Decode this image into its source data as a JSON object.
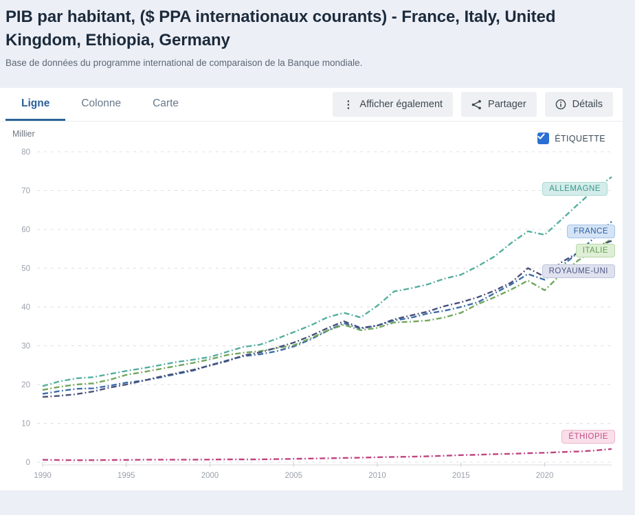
{
  "page": {
    "title": "PIB par habitant, ($ PPA internationaux courants) - France, Italy, United Kingdom, Ethiopia, Germany",
    "subtitle": "Base de données du programme international de comparaison de la Banque mondiale."
  },
  "tabs": [
    {
      "label": "Ligne",
      "active": true
    },
    {
      "label": "Colonne",
      "active": false
    },
    {
      "label": "Carte",
      "active": false
    }
  ],
  "toolbar": {
    "also_show_label": "Afficher également",
    "share_label": "Partager",
    "details_label": "Détails"
  },
  "legend": {
    "label": "ÉTIQUETTE",
    "checked": true,
    "checkbox_color": "#2b6fd4"
  },
  "chart_data": {
    "type": "line",
    "unit_label": "Millier",
    "x_label": "",
    "y_label": "Millier",
    "ylim": [
      0,
      80
    ],
    "y_ticks": [
      0,
      10,
      20,
      30,
      40,
      50,
      60,
      70,
      80
    ],
    "x_ticks": [
      1990,
      1995,
      2000,
      2005,
      2010,
      2015,
      2020
    ],
    "x": [
      1990,
      1991,
      1992,
      1993,
      1994,
      1995,
      1996,
      1997,
      1998,
      1999,
      2000,
      2001,
      2002,
      2003,
      2004,
      2005,
      2006,
      2007,
      2008,
      2009,
      2010,
      2011,
      2012,
      2013,
      2014,
      2015,
      2016,
      2017,
      2018,
      2019,
      2020,
      2021,
      2022,
      2023,
      2024
    ],
    "grid": "dashed-horizontal",
    "line_style": "dash-dot",
    "series": [
      {
        "name": "Allemagne",
        "label": "ALLEMAGNE",
        "color": "#53ae9f",
        "label_bg": "#d4ecea",
        "label_border": "#a9dad4",
        "label_text_color": "#36998c",
        "label_y_value": 70.3,
        "values": [
          19.6,
          20.8,
          21.6,
          21.9,
          22.7,
          23.5,
          24.2,
          25.0,
          25.8,
          26.4,
          27.1,
          28.4,
          29.7,
          30.3,
          31.8,
          33.5,
          35.2,
          37.3,
          38.5,
          37.3,
          40.3,
          44.0,
          44.8,
          45.8,
          47.3,
          48.3,
          50.5,
          53.0,
          56.5,
          59.5,
          58.6,
          62.5,
          66.5,
          70.3,
          73.5
        ]
      },
      {
        "name": "France",
        "label": "FRANCE",
        "color": "#3c6ca8",
        "label_bg": "#d4e3f5",
        "label_border": "#a3c4ea",
        "label_text_color": "#2c60a0",
        "label_y_value": 59.3,
        "values": [
          17.6,
          18.3,
          18.9,
          19.0,
          19.7,
          20.5,
          21.0,
          21.8,
          22.7,
          23.6,
          25.0,
          26.2,
          27.3,
          27.8,
          28.6,
          29.8,
          31.6,
          33.8,
          35.8,
          34.4,
          35.2,
          36.5,
          37.2,
          38.3,
          39.0,
          40.0,
          41.2,
          43.5,
          45.8,
          48.5,
          47.0,
          50.5,
          54.0,
          58.0,
          62.0
        ]
      },
      {
        "name": "Italie",
        "label": "ITALIE",
        "color": "#71a65c",
        "label_bg": "#dfeed6",
        "label_border": "#b9daa6",
        "label_text_color": "#619f4e",
        "label_y_value": 54.3,
        "values": [
          18.6,
          19.4,
          20.0,
          20.3,
          21.2,
          22.5,
          23.2,
          24.0,
          24.8,
          25.6,
          26.5,
          27.6,
          28.2,
          28.6,
          29.4,
          30.1,
          31.9,
          33.9,
          35.4,
          34.0,
          34.6,
          36.0,
          36.2,
          36.5,
          37.3,
          38.5,
          40.7,
          42.5,
          44.5,
          46.8,
          44.3,
          48.5,
          52.0,
          54.8,
          57.5
        ]
      },
      {
        "name": "Royaume-Uni",
        "label": "ROYAUME-UNI",
        "color": "#485079",
        "label_bg": "#dfe2ee",
        "label_border": "#bcc3db",
        "label_text_color": "#4c5584",
        "label_y_value": 49.0,
        "values": [
          16.8,
          17.1,
          17.5,
          18.2,
          19.2,
          20.0,
          21.0,
          22.0,
          22.9,
          23.8,
          24.9,
          26.0,
          27.5,
          28.3,
          29.5,
          30.8,
          32.5,
          34.5,
          36.3,
          34.6,
          35.2,
          36.8,
          37.8,
          38.8,
          40.2,
          41.2,
          42.5,
          44.2,
          46.3,
          50.0,
          47.8,
          51.5,
          54.0,
          55.5,
          57.0
        ]
      },
      {
        "name": "Éthiopie",
        "label": "ÉTHIOPIE",
        "color": "#c04380",
        "label_bg": "#f9dfe9",
        "label_border": "#f0b3cd",
        "label_text_color": "#c24d86",
        "label_y_value": 6.4,
        "values": [
          0.6,
          0.55,
          0.5,
          0.52,
          0.54,
          0.57,
          0.62,
          0.64,
          0.62,
          0.64,
          0.66,
          0.71,
          0.71,
          0.7,
          0.77,
          0.85,
          0.92,
          1.0,
          1.08,
          1.15,
          1.25,
          1.35,
          1.4,
          1.5,
          1.65,
          1.8,
          1.9,
          2.05,
          2.15,
          2.3,
          2.4,
          2.6,
          2.75,
          3.0,
          3.4
        ]
      }
    ]
  }
}
